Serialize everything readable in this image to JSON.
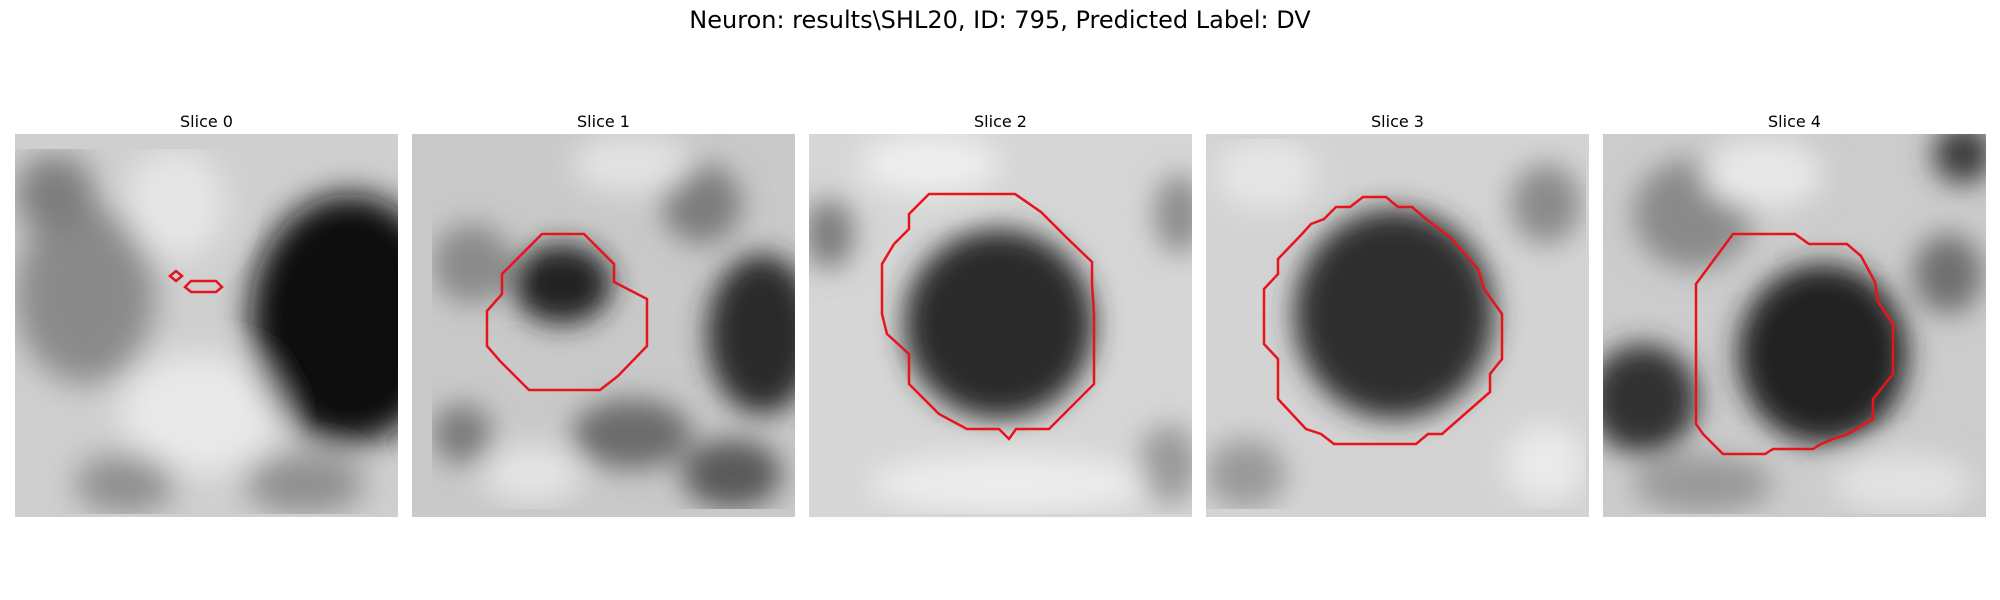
{
  "figure": {
    "title": "Neuron: results\\SHL20, ID: 795, Predicted Label: DV"
  },
  "panels": [
    {
      "title": "Slice 0"
    },
    {
      "title": "Slice 1"
    },
    {
      "title": "Slice 2"
    },
    {
      "title": "Slice 3"
    },
    {
      "title": "Slice 4"
    }
  ],
  "colors": {
    "contour": "#e8141c"
  }
}
